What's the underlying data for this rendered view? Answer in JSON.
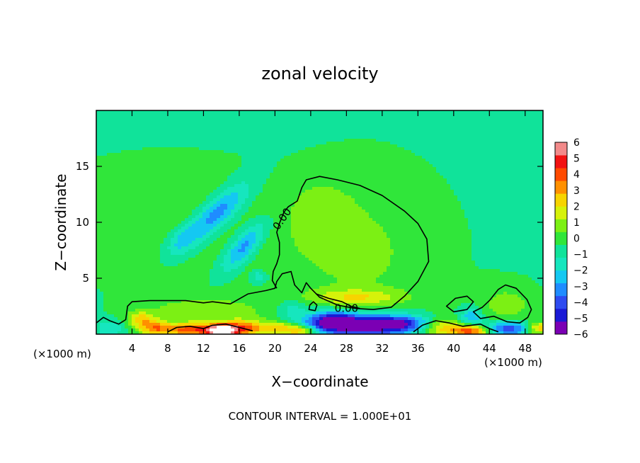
{
  "chart_data": {
    "type": "heatmap",
    "title": "zonal velocity",
    "xlabel": "X−coordinate",
    "ylabel": "Z−coordinate",
    "x_unit_left": "(×1000 m)",
    "x_unit_right": "(×1000 m)",
    "footer": "CONTOUR INTERVAL = 1.000E+01",
    "xlim": [
      0,
      50
    ],
    "ylim": [
      0,
      20
    ],
    "x_ticks": [
      {
        "value": 4,
        "label": "4"
      },
      {
        "value": 8,
        "label": "8"
      },
      {
        "value": 12,
        "label": "12"
      },
      {
        "value": 16,
        "label": "16"
      },
      {
        "value": 20,
        "label": "20"
      },
      {
        "value": 24,
        "label": "24"
      },
      {
        "value": 28,
        "label": "28"
      },
      {
        "value": 32,
        "label": "32"
      },
      {
        "value": 36,
        "label": "36"
      },
      {
        "value": 40,
        "label": "40"
      },
      {
        "value": 44,
        "label": "44"
      },
      {
        "value": 48,
        "label": "48"
      }
    ],
    "y_ticks": [
      {
        "value": 5,
        "label": "5"
      },
      {
        "value": 10,
        "label": "10"
      },
      {
        "value": 15,
        "label": "15"
      }
    ],
    "colorbar": {
      "range": [
        -6,
        6
      ],
      "labels": [
        {
          "value": 6,
          "label": "6"
        },
        {
          "value": 5,
          "label": "5"
        },
        {
          "value": 4,
          "label": "4"
        },
        {
          "value": 3,
          "label": "3"
        },
        {
          "value": 2,
          "label": "2"
        },
        {
          "value": 1,
          "label": "1"
        },
        {
          "value": 0,
          "label": "0"
        },
        {
          "value": -1,
          "label": "−1"
        },
        {
          "value": -2,
          "label": "−2"
        },
        {
          "value": -3,
          "label": "−3"
        },
        {
          "value": -4,
          "label": "−4"
        },
        {
          "value": -5,
          "label": "−5"
        },
        {
          "value": -6,
          "label": "−6"
        }
      ],
      "colors": [
        "#7b00b4",
        "#1a1ad6",
        "#2e4bf0",
        "#1f8cff",
        "#14c8f2",
        "#16e6be",
        "#10e39a",
        "#30e63a",
        "#7cf014",
        "#d6f20a",
        "#f7d400",
        "#ff9000",
        "#ff4a00",
        "#f21212",
        "#f28a8a"
      ]
    },
    "contour_level": {
      "value": 0,
      "label": "0.00"
    },
    "background_value": -0.6,
    "features": [
      {
        "x": 13.5,
        "z": 10.8,
        "sx": 3.0,
        "sz": 1.0,
        "rot": 35,
        "amp": -3.2
      },
      {
        "x": 9.5,
        "z": 8.3,
        "sx": 1.4,
        "sz": 0.8,
        "rot": 30,
        "amp": -1.6
      },
      {
        "x": 16.5,
        "z": 7.8,
        "sx": 2.2,
        "sz": 0.8,
        "rot": 40,
        "amp": -3.0
      },
      {
        "x": 18.2,
        "z": 5.1,
        "sx": 0.6,
        "sz": 0.4,
        "rot": 0,
        "amp": -1.8
      },
      {
        "x": 8.0,
        "z": 12.5,
        "sx": 8.0,
        "sz": 2.5,
        "rot": 0,
        "amp": 0.8
      },
      {
        "x": 12.0,
        "z": 7.0,
        "sx": 12.0,
        "sz": 3.0,
        "rot": 0,
        "amp": 0.5
      },
      {
        "x": 30.0,
        "z": 7.5,
        "sx": 6.5,
        "sz": 5.5,
        "rot": 0,
        "amp": 1.0
      },
      {
        "x": 25.0,
        "z": 11.0,
        "sx": 2.5,
        "sz": 2.0,
        "rot": 0,
        "amp": 0.8
      },
      {
        "x": 29.0,
        "z": 3.3,
        "sx": 3.5,
        "sz": 0.5,
        "rot": 0,
        "amp": 2.0
      },
      {
        "x": 22.0,
        "z": 2.2,
        "sx": 1.2,
        "sz": 0.6,
        "rot": 0,
        "amp": -1.4
      },
      {
        "x": 26.5,
        "z": 1.2,
        "sx": 2.0,
        "sz": 0.6,
        "rot": 0,
        "amp": -4.5
      },
      {
        "x": 30.0,
        "z": 0.7,
        "sx": 4.0,
        "sz": 0.7,
        "rot": 0,
        "amp": -5.0
      },
      {
        "x": 34.0,
        "z": 1.0,
        "sx": 2.5,
        "sz": 0.5,
        "rot": 0,
        "amp": -3.0
      },
      {
        "x": 10.5,
        "z": 0.4,
        "sx": 2.2,
        "sz": 0.4,
        "rot": 0,
        "amp": 4.5
      },
      {
        "x": 14.0,
        "z": 0.3,
        "sx": 1.2,
        "sz": 0.4,
        "rot": 0,
        "amp": 6.5
      },
      {
        "x": 16.5,
        "z": 0.5,
        "sx": 1.6,
        "sz": 0.5,
        "rot": 0,
        "amp": 4.0
      },
      {
        "x": 6.5,
        "z": 0.5,
        "sx": 1.2,
        "sz": 0.5,
        "rot": 0,
        "amp": 3.0
      },
      {
        "x": 5.0,
        "z": 1.3,
        "sx": 1.0,
        "sz": 0.5,
        "rot": 0,
        "amp": 2.5
      },
      {
        "x": 12.0,
        "z": 2.0,
        "sx": 5.0,
        "sz": 0.9,
        "rot": 0,
        "amp": 1.5
      },
      {
        "x": 20.5,
        "z": 0.5,
        "sx": 1.5,
        "sz": 0.4,
        "rot": 0,
        "amp": 3.0
      },
      {
        "x": 23.0,
        "z": 0.3,
        "sx": 1.2,
        "sz": 0.3,
        "rot": 0,
        "amp": 3.0
      },
      {
        "x": 38.5,
        "z": 0.6,
        "sx": 1.5,
        "sz": 0.6,
        "rot": 0,
        "amp": 3.0
      },
      {
        "x": 42.0,
        "z": 0.3,
        "sx": 1.5,
        "sz": 0.4,
        "rot": 0,
        "amp": 5.0
      },
      {
        "x": 42.0,
        "z": 1.5,
        "sx": 0.8,
        "sz": 0.6,
        "rot": 0,
        "amp": -2.5
      },
      {
        "x": 46.0,
        "z": 0.5,
        "sx": 2.0,
        "sz": 0.5,
        "rot": 0,
        "amp": -4.0
      },
      {
        "x": 46.0,
        "z": 2.5,
        "sx": 2.5,
        "sz": 1.5,
        "rot": 0,
        "amp": 1.3
      },
      {
        "x": 49.5,
        "z": 0.5,
        "sx": 1.0,
        "sz": 0.4,
        "rot": 0,
        "amp": 3.5
      },
      {
        "x": 1.5,
        "z": 0.5,
        "sx": 1.0,
        "sz": 0.5,
        "rot": 0,
        "amp": -1.5
      }
    ],
    "contours": [
      {
        "name": "main-zero-contour",
        "points": [
          [
            0,
            1.0
          ],
          [
            0.8,
            1.5
          ],
          [
            1.5,
            1.2
          ],
          [
            2.5,
            0.9
          ],
          [
            3.3,
            1.3
          ],
          [
            3.5,
            2.5
          ],
          [
            4,
            2.9
          ],
          [
            6,
            3.0
          ],
          [
            10,
            3.0
          ],
          [
            12,
            2.8
          ],
          [
            13,
            2.9
          ],
          [
            15,
            2.7
          ],
          [
            17,
            3.6
          ],
          [
            19,
            3.9
          ],
          [
            20,
            4.1
          ],
          [
            20.2,
            4.7
          ],
          [
            20.8,
            5.4
          ],
          [
            21.8,
            5.6
          ],
          [
            22.2,
            4.4
          ],
          [
            23,
            3.7
          ],
          [
            23.5,
            4.6
          ],
          [
            24,
            4.1
          ],
          [
            25,
            3.3
          ],
          [
            27,
            2.6
          ],
          [
            29,
            2.3
          ],
          [
            31,
            2.2
          ],
          [
            33,
            2.4
          ],
          [
            34.5,
            3.4
          ],
          [
            36,
            4.7
          ],
          [
            37.2,
            6.5
          ],
          [
            37,
            8.5
          ],
          [
            36,
            9.9
          ],
          [
            34.5,
            11
          ],
          [
            32,
            12.4
          ],
          [
            29.5,
            13.3
          ],
          [
            27,
            13.8
          ],
          [
            25,
            14.1
          ],
          [
            23.5,
            13.8
          ],
          [
            23,
            13.1
          ],
          [
            22.5,
            11.9
          ],
          [
            21.5,
            11.4
          ],
          [
            21,
            10.9
          ],
          [
            20.5,
            9.9
          ],
          [
            20.2,
            9.1
          ],
          [
            20.5,
            8.2
          ],
          [
            20.5,
            7.1
          ],
          [
            20.2,
            6.3
          ],
          [
            19.8,
            5.6
          ],
          [
            19.7,
            4.8
          ],
          [
            20.2,
            4.1
          ]
        ],
        "closed": false,
        "label_pos": [
          20.8,
          10.3
        ],
        "label_rot": -55
      },
      {
        "name": "small-zero-contour",
        "points": [
          [
            23.8,
            2.2
          ],
          [
            24.5,
            2.1
          ],
          [
            24.7,
            2.6
          ],
          [
            24.3,
            2.9
          ],
          [
            23.9,
            2.6
          ]
        ],
        "closed": true
      },
      {
        "name": "inner-zero-contour",
        "points": [
          [
            24.6,
            3.6
          ],
          [
            26,
            3.2
          ],
          [
            27.5,
            2.9
          ],
          [
            28.5,
            2.5
          ],
          [
            29.5,
            2.3
          ]
        ],
        "closed": false,
        "label_pos": [
          28.0,
          2.3
        ],
        "label_rot": 0
      },
      {
        "name": "right-zero-contour-a",
        "points": [
          [
            39.2,
            2.5
          ],
          [
            40.2,
            3.2
          ],
          [
            41.5,
            3.4
          ],
          [
            42.2,
            2.9
          ],
          [
            41.5,
            2.2
          ],
          [
            40,
            2.0
          ]
        ],
        "closed": true
      },
      {
        "name": "right-zero-contour-b",
        "points": [
          [
            42.2,
            2.0
          ],
          [
            43.2,
            2.4
          ],
          [
            44,
            3.0
          ],
          [
            45,
            4.0
          ],
          [
            45.8,
            4.4
          ],
          [
            47,
            4.1
          ],
          [
            48.2,
            3.1
          ],
          [
            48.7,
            2.2
          ],
          [
            48.3,
            1.5
          ],
          [
            47.4,
            1.0
          ],
          [
            46,
            1.1
          ],
          [
            44.5,
            1.6
          ],
          [
            43.0,
            1.4
          ],
          [
            42.2,
            2.0
          ]
        ],
        "closed": true
      },
      {
        "name": "bottom-zero-contour-a",
        "points": [
          [
            35.5,
            0.2
          ],
          [
            36.5,
            0.8
          ],
          [
            38,
            1.2
          ],
          [
            39.5,
            1.0
          ],
          [
            41,
            0.7
          ],
          [
            43,
            0.9
          ],
          [
            44,
            0.5
          ],
          [
            45,
            0.2
          ]
        ],
        "closed": false
      },
      {
        "name": "bottom-zero-contour-b",
        "points": [
          [
            8,
            0.2
          ],
          [
            9,
            0.6
          ],
          [
            10.5,
            0.7
          ],
          [
            12,
            0.5
          ],
          [
            13,
            0.8
          ],
          [
            14.5,
            0.9
          ],
          [
            16,
            0.6
          ],
          [
            17.5,
            0.3
          ]
        ],
        "closed": false
      }
    ]
  }
}
